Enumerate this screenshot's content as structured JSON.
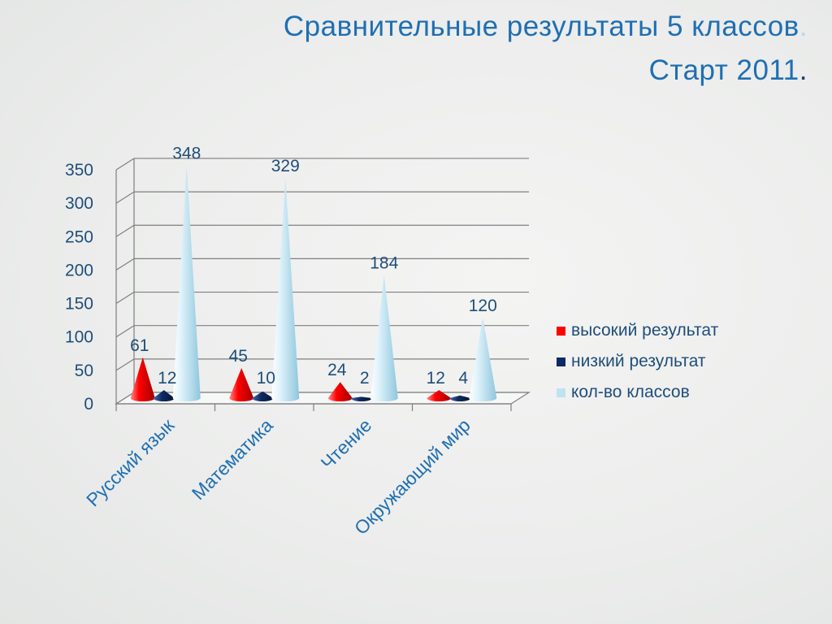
{
  "title": {
    "line1": "Сравнительные результаты 5 классов",
    "line1_dot": ".",
    "line2": "Старт  2011",
    "line2_dot": "."
  },
  "chart_data": {
    "type": "bar",
    "categories": [
      "Русский язык",
      "Математика",
      "Чтение",
      "Окружающий мир"
    ],
    "series": [
      {
        "name": "высокий результат",
        "values": [
          61,
          45,
          24,
          12
        ],
        "color": "#ff0000"
      },
      {
        "name": "низкий результат",
        "values": [
          12,
          10,
          2,
          4
        ],
        "color": "#0d2a66"
      },
      {
        "name": "кол-во классов",
        "values": [
          348,
          329,
          184,
          120
        ],
        "color": "#bfe3f2"
      }
    ],
    "yticks": [
      0,
      50,
      100,
      150,
      200,
      250,
      300,
      350
    ],
    "ylim": [
      0,
      350
    ],
    "grid": true,
    "bar_shape": "cone",
    "legend_position": "right"
  }
}
